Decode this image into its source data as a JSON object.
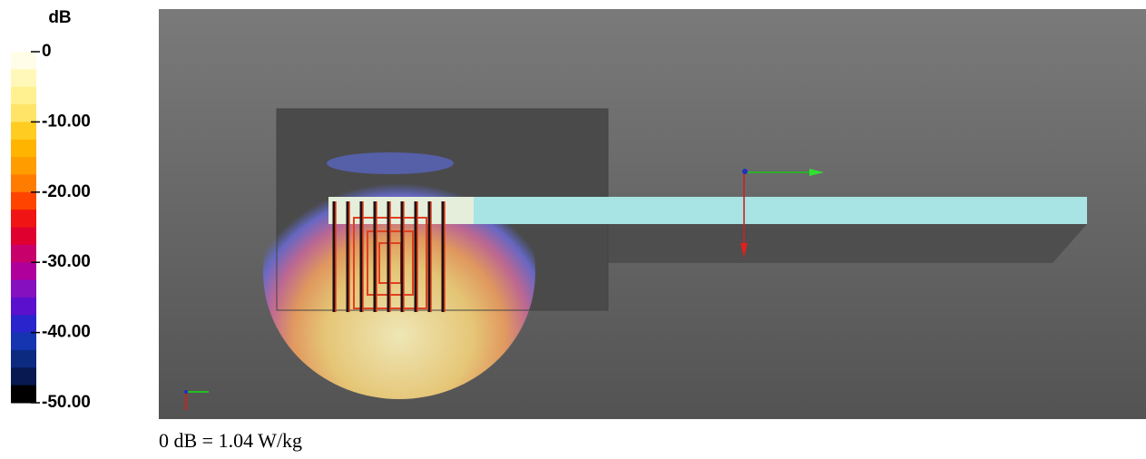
{
  "colorbar": {
    "unit": "dB",
    "ticks": [
      0,
      {
        "value": -10,
        "label": "-10.00"
      },
      {
        "value": -20,
        "label": "-20.00"
      },
      {
        "value": -30,
        "label": "-30.00"
      },
      {
        "value": -40,
        "label": "-40.00"
      },
      {
        "value": -50,
        "label": "-50.00"
      }
    ],
    "range": [
      0,
      -50
    ],
    "colors": [
      "#fffde8",
      "#fff8b8",
      "#fff090",
      "#ffe468",
      "#ffcc22",
      "#ffb400",
      "#ff9c00",
      "#ff7c00",
      "#ff4400",
      "#f01414",
      "#e00030",
      "#c8006c",
      "#b0009c",
      "#8410c0",
      "#5a10cc",
      "#2a24cc",
      "#1434b0",
      "#0c2a80",
      "#081850",
      "#000000"
    ]
  },
  "caption": "0 dB = 1.04 W/kg"
}
